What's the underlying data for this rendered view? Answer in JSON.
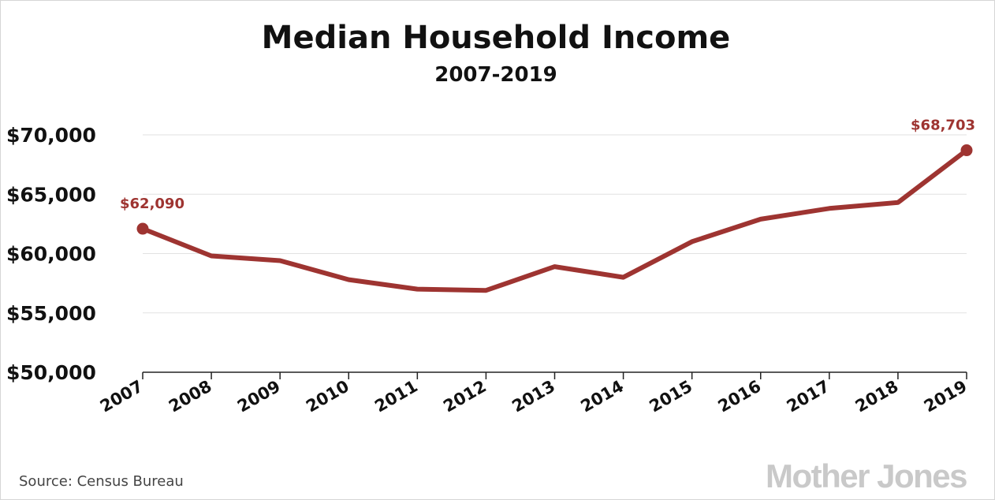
{
  "colors": {
    "series": "#9e3431",
    "text": "#111111",
    "grid": "#e2e2e2",
    "axis": "#222222",
    "source_text": "#444444",
    "logo": "#c9c9c9"
  },
  "source": "Source:  Census Bureau",
  "logo": "Mother Jones",
  "chart_data": {
    "type": "line",
    "title": "Median Household Income",
    "subtitle": "2007-2019",
    "xlabel": "",
    "ylabel": "",
    "categories": [
      "2007",
      "2008",
      "2009",
      "2010",
      "2011",
      "2012",
      "2013",
      "2014",
      "2015",
      "2016",
      "2017",
      "2018",
      "2019"
    ],
    "series": [
      {
        "values": [
          62090,
          59800,
          59400,
          57800,
          57000,
          56900,
          58900,
          58000,
          61000,
          62900,
          63800,
          64300,
          68703
        ]
      }
    ],
    "ylim": [
      50000,
      70000
    ],
    "yticks": [
      50000,
      55000,
      60000,
      65000,
      70000
    ],
    "ytick_labels": [
      "$50,000",
      "$55,000",
      "$60,000",
      "$65,000",
      "$70,000"
    ],
    "data_labels": [
      {
        "category": "2007",
        "value": 62090,
        "text": "$62,090"
      },
      {
        "category": "2019",
        "value": 68703,
        "text": "$68,703"
      }
    ],
    "grid": true,
    "legend": "none"
  }
}
